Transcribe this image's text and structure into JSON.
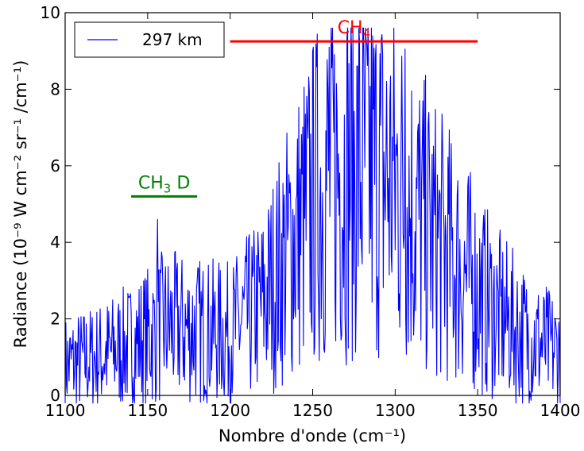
{
  "chart_data": {
    "type": "line",
    "xlabel": "Nombre d'onde (cm⁻¹)",
    "ylabel": "Radiance (10⁻⁹ W cm⁻² sr⁻¹ /cm⁻¹)",
    "xlim": [
      1100,
      1400
    ],
    "ylim": [
      0,
      10
    ],
    "xticks": [
      1100,
      1150,
      1200,
      1250,
      1300,
      1350,
      1400
    ],
    "yticks": [
      0,
      2,
      4,
      6,
      8,
      10
    ],
    "grid": false,
    "legend_position": "top-left",
    "series": [
      {
        "name": "297 km",
        "color": "#0000ff",
        "envelope_x": [
          1100,
          1120,
          1140,
          1160,
          1180,
          1200,
          1220,
          1240,
          1260,
          1280,
          1300,
          1320,
          1340,
          1360,
          1380,
          1400
        ],
        "envelope_y": [
          0.8,
          1.0,
          1.3,
          1.8,
          1.7,
          1.6,
          2.4,
          4.2,
          5.8,
          6.0,
          5.6,
          4.3,
          3.3,
          2.2,
          1.5,
          1.1
        ],
        "peaks_x": [
          1156,
          1260,
          1306
        ],
        "peaks_y": [
          4.6,
          9.1,
          9.05
        ]
      }
    ],
    "annotations": [
      {
        "label": "CH",
        "sub": "4",
        "color": "#ff0000",
        "x_start": 1200,
        "x_end": 1350,
        "y": 9.25
      },
      {
        "label": "CH",
        "sub": "3",
        "suffix": "D",
        "color": "#008000",
        "x_start": 1140,
        "x_end": 1180,
        "y": 5.2
      }
    ]
  }
}
